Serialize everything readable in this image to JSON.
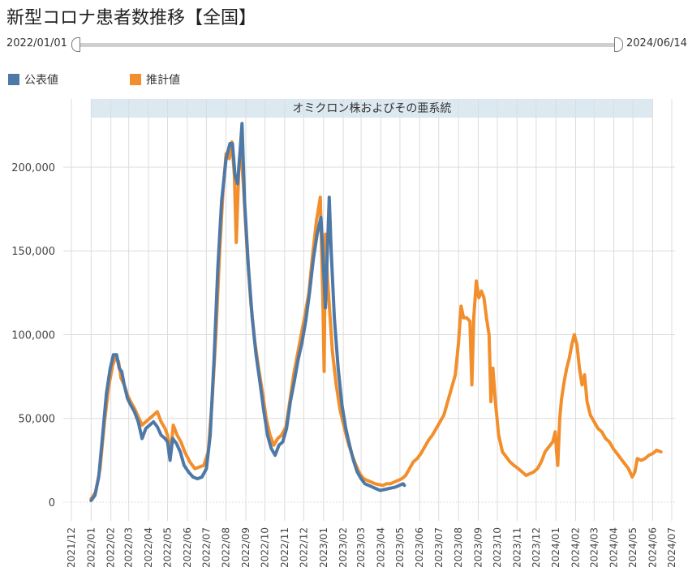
{
  "title": "新型コロナ患者数推移【全国】",
  "range": {
    "start_label": "2022/01/01",
    "end_label": "2024/06/14"
  },
  "colors": {
    "official": "#4e79a7",
    "estimate": "#f28e2b",
    "band": "#dde9f1",
    "grid": "#dcdcdc"
  },
  "legend": [
    {
      "label": "公表値",
      "color": "#4e79a7"
    },
    {
      "label": "推計値",
      "color": "#f28e2b"
    }
  ],
  "chart_data": {
    "type": "line",
    "title": "新型コロナ患者数推移【全国】",
    "xlabel": "",
    "ylabel": "",
    "xlim": [
      "2021-12-01",
      "2024-07-01"
    ],
    "ylim": [
      0,
      230000
    ],
    "grid": true,
    "legend_position": "top-left",
    "y_ticks": [
      {
        "value": 0,
        "label": "0"
      },
      {
        "value": 50000,
        "label": "50,000"
      },
      {
        "value": 100000,
        "label": "100,000"
      },
      {
        "value": 150000,
        "label": "150,000"
      },
      {
        "value": 200000,
        "label": "200,000"
      }
    ],
    "x_ticks": [
      "2021/12",
      "2022/01",
      "2022/02",
      "2022/03",
      "2022/04",
      "2022/05",
      "2022/06",
      "2022/07",
      "2022/08",
      "2022/09",
      "2022/10",
      "2022/11",
      "2022/12",
      "2023/01",
      "2023/02",
      "2023/03",
      "2023/04",
      "2023/05",
      "2023/06",
      "2023/07",
      "2023/08",
      "2023/09",
      "2023/10",
      "2023/11",
      "2023/12",
      "2024/01",
      "2024/02",
      "2024/03",
      "2024/04",
      "2024/05",
      "2024/06",
      "2024/07"
    ],
    "annotation_band": {
      "label": "オミクロン株およびその亜系統",
      "start": "2022-01-01",
      "end": "2024-06-01"
    },
    "series": [
      {
        "name": "推計値",
        "color": "#f28e2b",
        "points": [
          [
            "2022-01-01",
            2000
          ],
          [
            "2022-01-08",
            6000
          ],
          [
            "2022-01-15",
            20000
          ],
          [
            "2022-01-22",
            48000
          ],
          [
            "2022-01-29",
            70000
          ],
          [
            "2022-02-04",
            82000
          ],
          [
            "2022-02-08",
            86000
          ],
          [
            "2022-02-13",
            84000
          ],
          [
            "2022-02-17",
            74000
          ],
          [
            "2022-02-22",
            70000
          ],
          [
            "2022-02-27",
            64000
          ],
          [
            "2022-03-04",
            60000
          ],
          [
            "2022-03-10",
            56000
          ],
          [
            "2022-03-16",
            51000
          ],
          [
            "2022-03-22",
            46000
          ],
          [
            "2022-03-28",
            48000
          ],
          [
            "2022-04-03",
            50000
          ],
          [
            "2022-04-09",
            52000
          ],
          [
            "2022-04-15",
            54000
          ],
          [
            "2022-04-21",
            48000
          ],
          [
            "2022-04-27",
            44000
          ],
          [
            "2022-05-01",
            40000
          ],
          [
            "2022-05-06",
            30000
          ],
          [
            "2022-05-10",
            46000
          ],
          [
            "2022-05-16",
            40000
          ],
          [
            "2022-05-22",
            36000
          ],
          [
            "2022-05-28",
            30000
          ],
          [
            "2022-06-05",
            24000
          ],
          [
            "2022-06-13",
            20000
          ],
          [
            "2022-06-20",
            21000
          ],
          [
            "2022-06-27",
            22000
          ],
          [
            "2022-07-04",
            30000
          ],
          [
            "2022-07-10",
            60000
          ],
          [
            "2022-07-16",
            100000
          ],
          [
            "2022-07-22",
            150000
          ],
          [
            "2022-07-27",
            185000
          ],
          [
            "2022-08-01",
            208000
          ],
          [
            "2022-08-06",
            205000
          ],
          [
            "2022-08-10",
            215000
          ],
          [
            "2022-08-14",
            195000
          ],
          [
            "2022-08-17",
            155000
          ],
          [
            "2022-08-21",
            200000
          ],
          [
            "2022-08-24",
            212000
          ],
          [
            "2022-08-28",
            190000
          ],
          [
            "2022-09-03",
            150000
          ],
          [
            "2022-09-09",
            118000
          ],
          [
            "2022-09-15",
            96000
          ],
          [
            "2022-09-21",
            80000
          ],
          [
            "2022-09-27",
            66000
          ],
          [
            "2022-10-03",
            50000
          ],
          [
            "2022-10-09",
            40000
          ],
          [
            "2022-10-15",
            34000
          ],
          [
            "2022-10-21",
            38000
          ],
          [
            "2022-10-27",
            40000
          ],
          [
            "2022-11-03",
            45000
          ],
          [
            "2022-11-09",
            60000
          ],
          [
            "2022-11-15",
            76000
          ],
          [
            "2022-11-21",
            88000
          ],
          [
            "2022-11-27",
            100000
          ],
          [
            "2022-12-03",
            112000
          ],
          [
            "2022-12-09",
            125000
          ],
          [
            "2022-12-15",
            148000
          ],
          [
            "2022-12-21",
            168000
          ],
          [
            "2022-12-27",
            182000
          ],
          [
            "2022-12-31",
            120000
          ],
          [
            "2023-01-02",
            78000
          ],
          [
            "2023-01-04",
            160000
          ],
          [
            "2023-01-07",
            135000
          ],
          [
            "2023-01-10",
            118000
          ],
          [
            "2023-01-15",
            90000
          ],
          [
            "2023-01-21",
            70000
          ],
          [
            "2023-01-27",
            55000
          ],
          [
            "2023-02-03",
            44000
          ],
          [
            "2023-02-09",
            35000
          ],
          [
            "2023-02-15",
            28000
          ],
          [
            "2023-02-21",
            22000
          ],
          [
            "2023-02-27",
            17000
          ],
          [
            "2023-03-05",
            14000
          ],
          [
            "2023-03-11",
            13000
          ],
          [
            "2023-03-17",
            12000
          ],
          [
            "2023-03-23",
            11000
          ],
          [
            "2023-03-29",
            10500
          ],
          [
            "2023-04-04",
            10000
          ],
          [
            "2023-04-10",
            11000
          ],
          [
            "2023-04-16",
            11000
          ],
          [
            "2023-04-22",
            12000
          ],
          [
            "2023-04-28",
            13000
          ],
          [
            "2023-05-04",
            14000
          ],
          [
            "2023-05-10",
            16000
          ],
          [
            "2023-05-16",
            20000
          ],
          [
            "2023-05-22",
            24000
          ],
          [
            "2023-05-28",
            26000
          ],
          [
            "2023-06-03",
            29000
          ],
          [
            "2023-06-09",
            33000
          ],
          [
            "2023-06-15",
            37000
          ],
          [
            "2023-06-21",
            40000
          ],
          [
            "2023-06-27",
            44000
          ],
          [
            "2023-07-03",
            48000
          ],
          [
            "2023-07-09",
            52000
          ],
          [
            "2023-07-15",
            60000
          ],
          [
            "2023-07-21",
            68000
          ],
          [
            "2023-07-27",
            76000
          ],
          [
            "2023-08-01",
            95000
          ],
          [
            "2023-08-05",
            117000
          ],
          [
            "2023-08-09",
            110000
          ],
          [
            "2023-08-14",
            110000
          ],
          [
            "2023-08-19",
            108000
          ],
          [
            "2023-08-22",
            70000
          ],
          [
            "2023-08-25",
            110000
          ],
          [
            "2023-08-29",
            132000
          ],
          [
            "2023-09-02",
            122000
          ],
          [
            "2023-09-06",
            126000
          ],
          [
            "2023-09-10",
            122000
          ],
          [
            "2023-09-14",
            110000
          ],
          [
            "2023-09-18",
            100000
          ],
          [
            "2023-09-21",
            60000
          ],
          [
            "2023-09-24",
            80000
          ],
          [
            "2023-09-28",
            60000
          ],
          [
            "2023-10-03",
            40000
          ],
          [
            "2023-10-09",
            30000
          ],
          [
            "2023-10-15",
            27000
          ],
          [
            "2023-10-21",
            24000
          ],
          [
            "2023-10-27",
            22000
          ],
          [
            "2023-11-03",
            20000
          ],
          [
            "2023-11-09",
            18000
          ],
          [
            "2023-11-15",
            16000
          ],
          [
            "2023-11-21",
            17000
          ],
          [
            "2023-11-27",
            18000
          ],
          [
            "2023-12-03",
            20000
          ],
          [
            "2023-12-09",
            24000
          ],
          [
            "2023-12-15",
            30000
          ],
          [
            "2023-12-21",
            33000
          ],
          [
            "2023-12-27",
            36000
          ],
          [
            "2023-12-31",
            42000
          ],
          [
            "2024-01-02",
            30000
          ],
          [
            "2024-01-04",
            22000
          ],
          [
            "2024-01-07",
            50000
          ],
          [
            "2024-01-10",
            62000
          ],
          [
            "2024-01-14",
            72000
          ],
          [
            "2024-01-18",
            80000
          ],
          [
            "2024-01-22",
            86000
          ],
          [
            "2024-01-26",
            94000
          ],
          [
            "2024-01-30",
            100000
          ],
          [
            "2024-02-03",
            94000
          ],
          [
            "2024-02-07",
            80000
          ],
          [
            "2024-02-11",
            70000
          ],
          [
            "2024-02-15",
            76000
          ],
          [
            "2024-02-19",
            60000
          ],
          [
            "2024-02-24",
            52000
          ],
          [
            "2024-03-01",
            48000
          ],
          [
            "2024-03-07",
            44000
          ],
          [
            "2024-03-13",
            42000
          ],
          [
            "2024-03-19",
            38000
          ],
          [
            "2024-03-25",
            36000
          ],
          [
            "2024-03-31",
            32000
          ],
          [
            "2024-04-06",
            29000
          ],
          [
            "2024-04-12",
            26000
          ],
          [
            "2024-04-18",
            23000
          ],
          [
            "2024-04-24",
            20000
          ],
          [
            "2024-04-30",
            15000
          ],
          [
            "2024-05-04",
            18000
          ],
          [
            "2024-05-08",
            26000
          ],
          [
            "2024-05-14",
            25000
          ],
          [
            "2024-05-20",
            26000
          ],
          [
            "2024-05-26",
            28000
          ],
          [
            "2024-06-01",
            29000
          ],
          [
            "2024-06-07",
            31000
          ],
          [
            "2024-06-14",
            30000
          ]
        ]
      },
      {
        "name": "公表値",
        "color": "#4e79a7",
        "points": [
          [
            "2022-01-01",
            1000
          ],
          [
            "2022-01-07",
            4000
          ],
          [
            "2022-01-13",
            15000
          ],
          [
            "2022-01-19",
            40000
          ],
          [
            "2022-01-25",
            65000
          ],
          [
            "2022-01-31",
            80000
          ],
          [
            "2022-02-05",
            88000
          ],
          [
            "2022-02-10",
            88000
          ],
          [
            "2022-02-14",
            80000
          ],
          [
            "2022-02-18",
            78000
          ],
          [
            "2022-02-22",
            70000
          ],
          [
            "2022-02-27",
            62000
          ],
          [
            "2022-03-04",
            58000
          ],
          [
            "2022-03-10",
            54000
          ],
          [
            "2022-03-16",
            48000
          ],
          [
            "2022-03-22",
            38000
          ],
          [
            "2022-03-28",
            44000
          ],
          [
            "2022-04-03",
            46000
          ],
          [
            "2022-04-09",
            48000
          ],
          [
            "2022-04-15",
            45000
          ],
          [
            "2022-04-21",
            40000
          ],
          [
            "2022-04-27",
            38000
          ],
          [
            "2022-05-01",
            36000
          ],
          [
            "2022-05-05",
            25000
          ],
          [
            "2022-05-09",
            38000
          ],
          [
            "2022-05-15",
            35000
          ],
          [
            "2022-05-21",
            30000
          ],
          [
            "2022-05-27",
            22000
          ],
          [
            "2022-06-03",
            18000
          ],
          [
            "2022-06-10",
            15000
          ],
          [
            "2022-06-17",
            14000
          ],
          [
            "2022-06-24",
            15000
          ],
          [
            "2022-07-01",
            20000
          ],
          [
            "2022-07-07",
            40000
          ],
          [
            "2022-07-13",
            85000
          ],
          [
            "2022-07-19",
            140000
          ],
          [
            "2022-07-25",
            180000
          ],
          [
            "2022-08-01",
            205000
          ],
          [
            "2022-08-07",
            214000
          ],
          [
            "2022-08-11",
            214000
          ],
          [
            "2022-08-15",
            195000
          ],
          [
            "2022-08-19",
            190000
          ],
          [
            "2022-08-23",
            210000
          ],
          [
            "2022-08-26",
            226000
          ],
          [
            "2022-08-30",
            180000
          ],
          [
            "2022-09-05",
            140000
          ],
          [
            "2022-09-11",
            110000
          ],
          [
            "2022-09-17",
            88000
          ],
          [
            "2022-09-23",
            72000
          ],
          [
            "2022-09-29",
            55000
          ],
          [
            "2022-10-05",
            40000
          ],
          [
            "2022-10-11",
            32000
          ],
          [
            "2022-10-17",
            28000
          ],
          [
            "2022-10-23",
            34000
          ],
          [
            "2022-10-29",
            36000
          ],
          [
            "2022-11-04",
            44000
          ],
          [
            "2022-11-10",
            60000
          ],
          [
            "2022-11-16",
            72000
          ],
          [
            "2022-11-22",
            85000
          ],
          [
            "2022-11-28",
            95000
          ],
          [
            "2022-12-04",
            108000
          ],
          [
            "2022-12-10",
            125000
          ],
          [
            "2022-12-16",
            145000
          ],
          [
            "2022-12-22",
            160000
          ],
          [
            "2022-12-28",
            170000
          ],
          [
            "2023-01-01",
            140000
          ],
          [
            "2023-01-04",
            116000
          ],
          [
            "2023-01-07",
            150000
          ],
          [
            "2023-01-10",
            182000
          ],
          [
            "2023-01-13",
            150000
          ],
          [
            "2023-01-18",
            110000
          ],
          [
            "2023-01-24",
            80000
          ],
          [
            "2023-01-30",
            58000
          ],
          [
            "2023-02-05",
            44000
          ],
          [
            "2023-02-11",
            34000
          ],
          [
            "2023-02-17",
            25000
          ],
          [
            "2023-02-23",
            18000
          ],
          [
            "2023-03-01",
            14000
          ],
          [
            "2023-03-07",
            11000
          ],
          [
            "2023-03-13",
            10000
          ],
          [
            "2023-03-19",
            9000
          ],
          [
            "2023-03-25",
            8000
          ],
          [
            "2023-03-31",
            7000
          ],
          [
            "2023-04-06",
            7500
          ],
          [
            "2023-04-12",
            8000
          ],
          [
            "2023-04-18",
            8500
          ],
          [
            "2023-04-24",
            9000
          ],
          [
            "2023-04-30",
            10000
          ],
          [
            "2023-05-06",
            11000
          ],
          [
            "2023-05-08",
            10000
          ]
        ]
      }
    ]
  }
}
